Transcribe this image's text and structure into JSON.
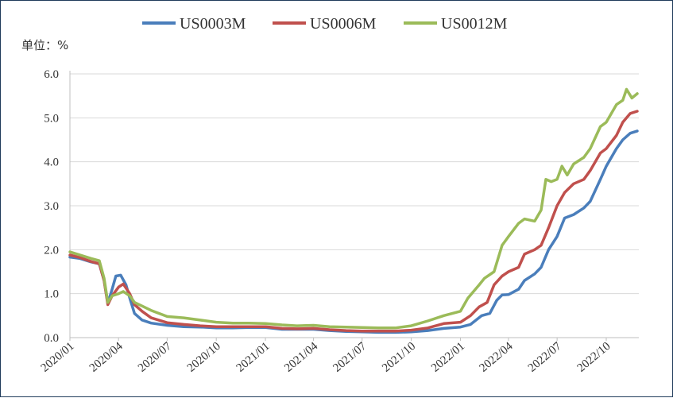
{
  "chart_data": {
    "type": "line",
    "title": "",
    "unit_label": "单位：%",
    "xlabel": "",
    "ylabel": "",
    "x_tick_labels": [
      "2020/01",
      "2020/04",
      "2020/07",
      "2020/10",
      "2021/01",
      "2021/04",
      "2021/07",
      "2021/10",
      "2022/01",
      "2022/04",
      "2022/07",
      "2022/10"
    ],
    "y_tick_labels": [
      "0.0",
      "1.0",
      "2.0",
      "3.0",
      "4.0",
      "5.0",
      "6.0"
    ],
    "ylim": [
      0,
      6
    ],
    "xlim": [
      "2020-01-01",
      "2022-12-01"
    ],
    "grid": "horizontal",
    "legend_position": "top",
    "series": [
      {
        "name": "US0003M",
        "color": "#4a7ebb",
        "points": [
          [
            "2020-01-01",
            1.83
          ],
          [
            "2020-01-20",
            1.8
          ],
          [
            "2020-02-10",
            1.72
          ],
          [
            "2020-02-25",
            1.68
          ],
          [
            "2020-03-05",
            1.3
          ],
          [
            "2020-03-12",
            0.78
          ],
          [
            "2020-03-20",
            1.1
          ],
          [
            "2020-03-27",
            1.4
          ],
          [
            "2020-04-05",
            1.42
          ],
          [
            "2020-04-15",
            1.2
          ],
          [
            "2020-04-22",
            0.9
          ],
          [
            "2020-05-01",
            0.55
          ],
          [
            "2020-05-15",
            0.4
          ],
          [
            "2020-06-01",
            0.33
          ],
          [
            "2020-07-01",
            0.28
          ],
          [
            "2020-08-01",
            0.25
          ],
          [
            "2020-09-01",
            0.24
          ],
          [
            "2020-10-01",
            0.22
          ],
          [
            "2020-11-01",
            0.22
          ],
          [
            "2020-12-01",
            0.23
          ],
          [
            "2021-01-01",
            0.23
          ],
          [
            "2021-02-01",
            0.19
          ],
          [
            "2021-03-01",
            0.19
          ],
          [
            "2021-04-01",
            0.19
          ],
          [
            "2021-05-01",
            0.16
          ],
          [
            "2021-06-01",
            0.14
          ],
          [
            "2021-07-01",
            0.13
          ],
          [
            "2021-08-01",
            0.12
          ],
          [
            "2021-09-01",
            0.12
          ],
          [
            "2021-10-01",
            0.13
          ],
          [
            "2021-11-01",
            0.16
          ],
          [
            "2021-12-01",
            0.21
          ],
          [
            "2022-01-01",
            0.24
          ],
          [
            "2022-01-20",
            0.3
          ],
          [
            "2022-02-10",
            0.5
          ],
          [
            "2022-02-25",
            0.55
          ],
          [
            "2022-03-10",
            0.85
          ],
          [
            "2022-03-20",
            0.97
          ],
          [
            "2022-04-01",
            0.98
          ],
          [
            "2022-04-20",
            1.1
          ],
          [
            "2022-05-01",
            1.3
          ],
          [
            "2022-05-20",
            1.45
          ],
          [
            "2022-06-01",
            1.6
          ],
          [
            "2022-06-15",
            2.0
          ],
          [
            "2022-07-01",
            2.3
          ],
          [
            "2022-07-15",
            2.72
          ],
          [
            "2022-08-01",
            2.8
          ],
          [
            "2022-08-20",
            2.95
          ],
          [
            "2022-09-01",
            3.1
          ],
          [
            "2022-09-20",
            3.6
          ],
          [
            "2022-10-01",
            3.9
          ],
          [
            "2022-10-20",
            4.3
          ],
          [
            "2022-11-01",
            4.5
          ],
          [
            "2022-11-15",
            4.65
          ],
          [
            "2022-11-28",
            4.7
          ]
        ]
      },
      {
        "name": "US0006M",
        "color": "#c0504d",
        "points": [
          [
            "2020-01-01",
            1.88
          ],
          [
            "2020-01-20",
            1.82
          ],
          [
            "2020-02-10",
            1.73
          ],
          [
            "2020-02-25",
            1.68
          ],
          [
            "2020-03-05",
            1.3
          ],
          [
            "2020-03-12",
            0.75
          ],
          [
            "2020-03-20",
            0.95
          ],
          [
            "2020-04-01",
            1.15
          ],
          [
            "2020-04-10",
            1.22
          ],
          [
            "2020-04-22",
            1.0
          ],
          [
            "2020-05-01",
            0.75
          ],
          [
            "2020-05-15",
            0.6
          ],
          [
            "2020-06-01",
            0.45
          ],
          [
            "2020-07-01",
            0.34
          ],
          [
            "2020-08-01",
            0.3
          ],
          [
            "2020-09-01",
            0.27
          ],
          [
            "2020-10-01",
            0.25
          ],
          [
            "2020-11-01",
            0.25
          ],
          [
            "2020-12-01",
            0.25
          ],
          [
            "2021-01-01",
            0.25
          ],
          [
            "2021-02-01",
            0.21
          ],
          [
            "2021-03-01",
            0.2
          ],
          [
            "2021-04-01",
            0.21
          ],
          [
            "2021-05-01",
            0.18
          ],
          [
            "2021-06-01",
            0.16
          ],
          [
            "2021-07-01",
            0.15
          ],
          [
            "2021-08-01",
            0.15
          ],
          [
            "2021-09-01",
            0.15
          ],
          [
            "2021-10-01",
            0.17
          ],
          [
            "2021-11-01",
            0.22
          ],
          [
            "2021-12-01",
            0.32
          ],
          [
            "2022-01-01",
            0.35
          ],
          [
            "2022-01-20",
            0.5
          ],
          [
            "2022-02-05",
            0.7
          ],
          [
            "2022-02-20",
            0.8
          ],
          [
            "2022-03-05",
            1.2
          ],
          [
            "2022-03-20",
            1.4
          ],
          [
            "2022-04-01",
            1.5
          ],
          [
            "2022-04-20",
            1.6
          ],
          [
            "2022-05-01",
            1.9
          ],
          [
            "2022-05-20",
            2.0
          ],
          [
            "2022-06-01",
            2.1
          ],
          [
            "2022-06-15",
            2.5
          ],
          [
            "2022-07-01",
            3.0
          ],
          [
            "2022-07-15",
            3.3
          ],
          [
            "2022-08-01",
            3.5
          ],
          [
            "2022-08-20",
            3.6
          ],
          [
            "2022-09-01",
            3.8
          ],
          [
            "2022-09-20",
            4.2
          ],
          [
            "2022-10-01",
            4.3
          ],
          [
            "2022-10-20",
            4.6
          ],
          [
            "2022-11-01",
            4.9
          ],
          [
            "2022-11-15",
            5.1
          ],
          [
            "2022-11-28",
            5.15
          ]
        ]
      },
      {
        "name": "US0012M",
        "color": "#9bbb59",
        "points": [
          [
            "2020-01-01",
            1.95
          ],
          [
            "2020-01-20",
            1.88
          ],
          [
            "2020-02-10",
            1.8
          ],
          [
            "2020-02-25",
            1.75
          ],
          [
            "2020-03-05",
            1.35
          ],
          [
            "2020-03-12",
            0.8
          ],
          [
            "2020-03-20",
            0.95
          ],
          [
            "2020-04-01",
            1.0
          ],
          [
            "2020-04-10",
            1.05
          ],
          [
            "2020-04-22",
            0.95
          ],
          [
            "2020-05-01",
            0.8
          ],
          [
            "2020-05-15",
            0.72
          ],
          [
            "2020-06-01",
            0.62
          ],
          [
            "2020-07-01",
            0.48
          ],
          [
            "2020-08-01",
            0.45
          ],
          [
            "2020-09-01",
            0.4
          ],
          [
            "2020-10-01",
            0.35
          ],
          [
            "2020-11-01",
            0.33
          ],
          [
            "2020-12-01",
            0.33
          ],
          [
            "2021-01-01",
            0.32
          ],
          [
            "2021-02-01",
            0.29
          ],
          [
            "2021-03-01",
            0.27
          ],
          [
            "2021-04-01",
            0.28
          ],
          [
            "2021-05-01",
            0.25
          ],
          [
            "2021-06-01",
            0.24
          ],
          [
            "2021-07-01",
            0.23
          ],
          [
            "2021-08-01",
            0.22
          ],
          [
            "2021-09-01",
            0.22
          ],
          [
            "2021-10-01",
            0.27
          ],
          [
            "2021-11-01",
            0.38
          ],
          [
            "2021-12-01",
            0.5
          ],
          [
            "2022-01-01",
            0.6
          ],
          [
            "2022-01-15",
            0.9
          ],
          [
            "2022-02-05",
            1.2
          ],
          [
            "2022-02-15",
            1.35
          ],
          [
            "2022-03-05",
            1.5
          ],
          [
            "2022-03-20",
            2.1
          ],
          [
            "2022-04-01",
            2.3
          ],
          [
            "2022-04-20",
            2.6
          ],
          [
            "2022-05-01",
            2.7
          ],
          [
            "2022-05-20",
            2.65
          ],
          [
            "2022-06-01",
            2.9
          ],
          [
            "2022-06-10",
            3.6
          ],
          [
            "2022-06-20",
            3.55
          ],
          [
            "2022-07-01",
            3.6
          ],
          [
            "2022-07-10",
            3.9
          ],
          [
            "2022-07-20",
            3.7
          ],
          [
            "2022-08-01",
            3.95
          ],
          [
            "2022-08-20",
            4.1
          ],
          [
            "2022-09-01",
            4.3
          ],
          [
            "2022-09-20",
            4.8
          ],
          [
            "2022-10-01",
            4.9
          ],
          [
            "2022-10-20",
            5.3
          ],
          [
            "2022-11-01",
            5.4
          ],
          [
            "2022-11-08",
            5.65
          ],
          [
            "2022-11-18",
            5.45
          ],
          [
            "2022-11-28",
            5.55
          ]
        ]
      }
    ]
  }
}
